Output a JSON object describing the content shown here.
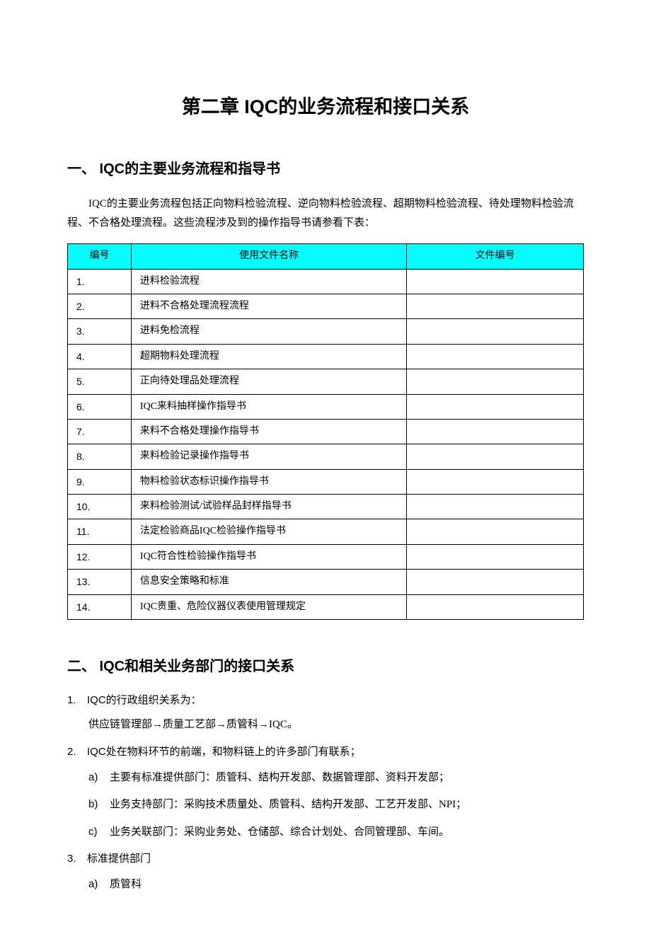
{
  "chapter_title": "第二章    IQC的业务流程和接口关系",
  "section1": {
    "heading": "一、 IQC的主要业务流程和指导书",
    "intro": "IQC的主要业务流程包括正向物料检验流程、逆向物料检验流程、超期物料检验流程、待处理物料检验流程、不合格处理流程。这些流程涉及到的操作指导书请参看下表：",
    "table": {
      "header_color": "#00ffff",
      "border_color": "#000000",
      "columns": [
        "编号",
        "使用文件名称",
        "文件编号"
      ],
      "rows": [
        {
          "num": "1.",
          "name": "进料检验流程",
          "fileno": ""
        },
        {
          "num": "2.",
          "name": "进料不合格处理流程流程",
          "fileno": ""
        },
        {
          "num": "3.",
          "name": "进料免检流程",
          "fileno": ""
        },
        {
          "num": "4.",
          "name": "超期物料处理流程",
          "fileno": ""
        },
        {
          "num": "5.",
          "name": "正向待处理品处理流程",
          "fileno": ""
        },
        {
          "num": "6.",
          "name": "IQC来料抽样操作指导书",
          "fileno": ""
        },
        {
          "num": "7.",
          "name": "来料不合格处理操作指导书",
          "fileno": ""
        },
        {
          "num": "8.",
          "name": "来料检验记录操作指导书",
          "fileno": ""
        },
        {
          "num": "9.",
          "name": "物料检验状态标识操作指导书",
          "fileno": ""
        },
        {
          "num": "10.",
          "name": "来料检验测试/试验样品封样指导书",
          "fileno": ""
        },
        {
          "num": "11.",
          "name": "法定检验商品IQC检验操作指导书",
          "fileno": ""
        },
        {
          "num": "12.",
          "name": "IQC符合性检验操作指导书",
          "fileno": ""
        },
        {
          "num": "13.",
          "name": "信息安全策略和标准",
          "fileno": ""
        },
        {
          "num": "14.",
          "name": "IQC贵重、危险仪器仪表使用管理规定",
          "fileno": ""
        }
      ]
    }
  },
  "section2": {
    "heading": "二、 IQC和相关业务部门的接口关系",
    "items": [
      {
        "num": "1.",
        "title": "IQC的行政组织关系为：",
        "body": "供应链管理部→质量工艺部→质管科→IQC。"
      },
      {
        "num": "2.",
        "title": "IQC处在物料环节的前端，和物料链上的许多部门有联系；",
        "subs": [
          {
            "letter": "a)",
            "text": "主要有标准提供部门：质管科、结构开发部、数据管理部、资料开发部；"
          },
          {
            "letter": "b)",
            "text": "业务支持部门：采购技术质量处、质管科、结构开发部、工艺开发部、NPI；"
          },
          {
            "letter": "c)",
            "text": "业务关联部门：采购业务处、仓储部、综合计划处、合同管理部、车间。"
          }
        ]
      },
      {
        "num": "3.",
        "title": "标准提供部门",
        "subs": [
          {
            "letter": "a)",
            "text": "质管科"
          }
        ]
      }
    ]
  }
}
